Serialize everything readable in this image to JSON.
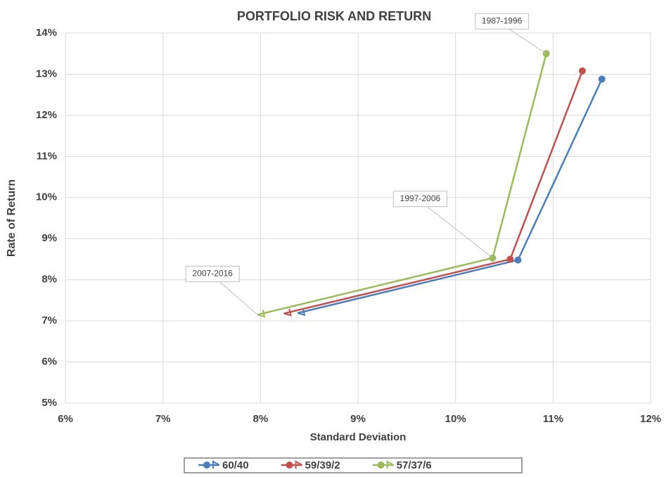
{
  "chart_data": {
    "type": "scatter-line",
    "title": "PORTFOLIO RISK AND RETURN",
    "x_label": "Standard Deviation",
    "y_label": "Rate of Return",
    "xlim": [
      6,
      12
    ],
    "ylim": [
      5,
      14
    ],
    "xticks": [
      {
        "value": 6,
        "label": "6%"
      },
      {
        "value": 7,
        "label": "7%"
      },
      {
        "value": 8,
        "label": "8%"
      },
      {
        "value": 9,
        "label": "9%"
      },
      {
        "value": 10,
        "label": "10%"
      },
      {
        "value": 11,
        "label": "11%"
      },
      {
        "value": 12,
        "label": "12%"
      }
    ],
    "yticks": [
      {
        "value": 5,
        "label": "5%"
      },
      {
        "value": 6,
        "label": "6%"
      },
      {
        "value": 7,
        "label": "7%"
      },
      {
        "value": 8,
        "label": "8%"
      },
      {
        "value": 9,
        "label": "9%"
      },
      {
        "value": 10,
        "label": "10%"
      },
      {
        "value": 11,
        "label": "11%"
      },
      {
        "value": 12,
        "label": "12%"
      },
      {
        "value": 13,
        "label": "13%"
      },
      {
        "value": 14,
        "label": "14%"
      }
    ],
    "grid": true,
    "legend": "bottom",
    "series": [
      {
        "name": "60/40",
        "color": "#4a7ebb",
        "x": [
          11.5,
          10.64,
          8.38
        ],
        "values": [
          12.88,
          8.48,
          7.19
        ]
      },
      {
        "name": "59/39/2",
        "color": "#c0504d",
        "x": [
          11.3,
          10.56,
          8.24
        ],
        "values": [
          13.08,
          8.5,
          7.18
        ]
      },
      {
        "name": "57/37/6",
        "color": "#9bbb59",
        "x": [
          10.93,
          10.38,
          7.97
        ],
        "values": [
          13.5,
          8.53,
          7.15
        ],
        "point_labels": [
          "1987-1996",
          "1997-2006",
          "2007-2016"
        ]
      }
    ]
  }
}
